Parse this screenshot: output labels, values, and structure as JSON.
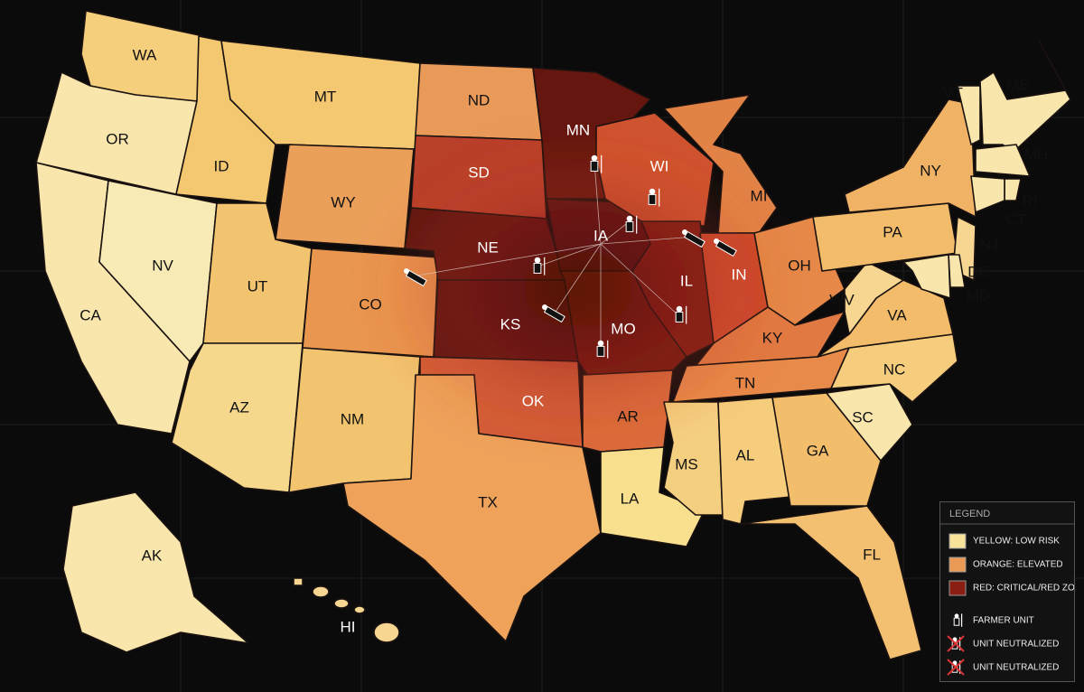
{
  "map": {
    "states": [
      {
        "label": "WA",
        "color": "#f6cf7c"
      },
      {
        "label": "OR",
        "color": "#f8e6ac"
      },
      {
        "label": "CA",
        "color": "#f8e6ac"
      },
      {
        "label": "NV",
        "color": "#f8eab4"
      },
      {
        "label": "ID",
        "color": "#f4c870"
      },
      {
        "label": "MT",
        "color": "#f4c870"
      },
      {
        "label": "WY",
        "color": "#eba05a"
      },
      {
        "label": "UT",
        "color": "#f2c470"
      },
      {
        "label": "AZ",
        "color": "#f6d88c"
      },
      {
        "label": "CO",
        "color": "#e9964f"
      },
      {
        "label": "NM",
        "color": "#f2c470"
      },
      {
        "label": "ND",
        "color": "#e99a58"
      },
      {
        "label": "SD",
        "color": "#b9402a"
      },
      {
        "label": "NE",
        "color": "#5e1510"
      },
      {
        "label": "KS",
        "color": "#5a1410"
      },
      {
        "label": "OK",
        "color": "#d35e38"
      },
      {
        "label": "TX",
        "color": "#eea25a"
      },
      {
        "label": "MN",
        "color": "#64160f"
      },
      {
        "label": "IA",
        "color": "#541210"
      },
      {
        "label": "MO",
        "color": "#70190f"
      },
      {
        "label": "AR",
        "color": "#db6c3c"
      },
      {
        "label": "LA",
        "color": "#f8e08e"
      },
      {
        "label": "WI",
        "color": "#cf532f"
      },
      {
        "label": "IL",
        "color": "#7c1c12"
      },
      {
        "label": "MI",
        "color": "#e28346"
      },
      {
        "label": "IN",
        "color": "#cc4a2c"
      },
      {
        "label": "OH",
        "color": "#e58848"
      },
      {
        "label": "KY",
        "color": "#e17a42"
      },
      {
        "label": "TN",
        "color": "#e88a4a"
      },
      {
        "label": "MS",
        "color": "#f5cf80"
      },
      {
        "label": "AL",
        "color": "#f5cd7c"
      },
      {
        "label": "GA",
        "color": "#f2be6c"
      },
      {
        "label": "FL",
        "color": "#f2c070"
      },
      {
        "label": "SC",
        "color": "#f8e6ac"
      },
      {
        "label": "NC",
        "color": "#f5cd7c"
      },
      {
        "label": "VA",
        "color": "#f2bc6a"
      },
      {
        "label": "WV",
        "color": "#f6d690"
      },
      {
        "label": "PA",
        "color": "#f2bc6a"
      },
      {
        "label": "NY",
        "color": "#f0b264"
      },
      {
        "label": "NJ",
        "color": "#f6d690"
      },
      {
        "label": "DE",
        "color": "#f8e6ac"
      },
      {
        "label": "MD",
        "color": "#f8e6ac"
      },
      {
        "label": "VT",
        "color": "#f8e6ac"
      },
      {
        "label": "ME",
        "color": "#f8e6ac"
      },
      {
        "label": "MH",
        "color": "#f8e6ac"
      },
      {
        "label": "RI",
        "color": "#f8e6ac"
      },
      {
        "label": "CT",
        "color": "#f8e6ac"
      },
      {
        "label": "AK",
        "color": "#f8e6ac"
      },
      {
        "label": "HI",
        "color": "#f6d690"
      }
    ]
  },
  "legend": {
    "title": "LEGEND",
    "items": [
      {
        "label": "YELLOW: LOW RISK",
        "color": "#f7e39a"
      },
      {
        "label": "ORANGE: ELEVATED",
        "color": "#eb9a56"
      },
      {
        "label": "RED: CRITICAL/RED ZONE",
        "color": "#8a1e12"
      },
      {
        "label": "FARMER UNIT"
      },
      {
        "label": "UNIT NEUTRALIZED"
      },
      {
        "label": "UNIT NEUTRALIZED"
      }
    ]
  }
}
